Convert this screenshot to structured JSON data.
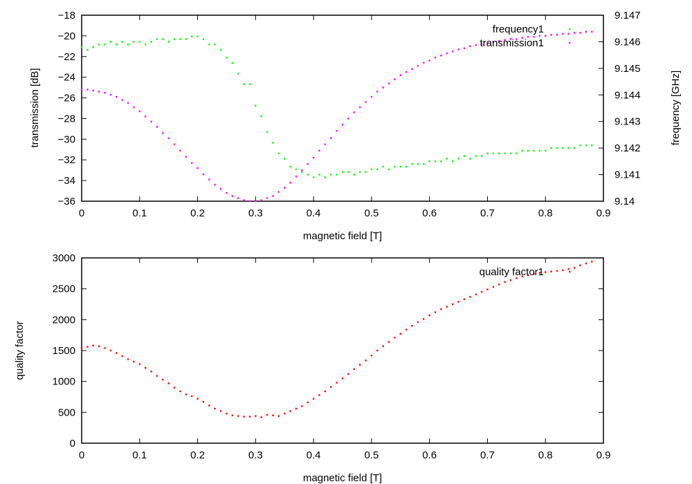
{
  "chart_data": [
    {
      "type": "scatter",
      "title": "",
      "xlabel": "magnetic field [T]",
      "ylabel": "transmission [dB]",
      "y2label": "frequency [GHz]",
      "xlim": [
        0,
        0.9
      ],
      "ylim": [
        -36,
        -18
      ],
      "y2lim": [
        9.14,
        9.147
      ],
      "xticks": [
        "0",
        "0.1",
        "0.2",
        "0.3",
        "0.4",
        "0.5",
        "0.6",
        "0.7",
        "0.8",
        "0.9"
      ],
      "yticks": [
        "-36",
        "-34",
        "-32",
        "-30",
        "-28",
        "-26",
        "-24",
        "-22",
        "-20",
        "-18"
      ],
      "y2ticks": [
        "9.14",
        "9.141",
        "9.142",
        "9.143",
        "9.144",
        "9.145",
        "9.146",
        "9.147"
      ],
      "grid": false,
      "legend": "top-right",
      "series": [
        {
          "name": "frequency1",
          "axis": "right",
          "color": "#00ff00",
          "x": [
            0,
            0.01,
            0.02,
            0.03,
            0.04,
            0.05,
            0.06,
            0.07,
            0.08,
            0.09,
            0.1,
            0.11,
            0.12,
            0.13,
            0.14,
            0.15,
            0.16,
            0.17,
            0.18,
            0.19,
            0.2,
            0.21,
            0.22,
            0.23,
            0.24,
            0.25,
            0.26,
            0.27,
            0.28,
            0.29,
            0.3,
            0.31,
            0.32,
            0.33,
            0.34,
            0.35,
            0.36,
            0.37,
            0.38,
            0.39,
            0.4,
            0.41,
            0.42,
            0.43,
            0.44,
            0.45,
            0.46,
            0.47,
            0.48,
            0.49,
            0.5,
            0.51,
            0.52,
            0.53,
            0.54,
            0.55,
            0.56,
            0.57,
            0.58,
            0.59,
            0.6,
            0.61,
            0.62,
            0.63,
            0.64,
            0.65,
            0.66,
            0.67,
            0.68,
            0.69,
            0.7,
            0.71,
            0.72,
            0.73,
            0.74,
            0.75,
            0.76,
            0.77,
            0.78,
            0.79,
            0.8,
            0.81,
            0.82,
            0.83,
            0.84,
            0.85,
            0.86,
            0.87,
            0.88
          ],
          "y": [
            9.1458,
            9.1457,
            9.1458,
            9.1459,
            9.1459,
            9.146,
            9.1459,
            9.146,
            9.1459,
            9.146,
            9.146,
            9.1459,
            9.146,
            9.1461,
            9.1461,
            9.146,
            9.1461,
            9.1461,
            9.1461,
            9.1462,
            9.1462,
            9.1461,
            9.1459,
            9.1459,
            9.1457,
            9.1454,
            9.1452,
            9.1448,
            9.1444,
            9.1444,
            9.1436,
            9.1432,
            9.1426,
            9.1422,
            9.1418,
            9.1416,
            9.1413,
            9.1412,
            9.1411,
            9.141,
            9.1409,
            9.141,
            9.1409,
            9.141,
            9.141,
            9.1411,
            9.1411,
            9.141,
            9.1411,
            9.1411,
            9.1412,
            9.1412,
            9.1413,
            9.1412,
            9.1413,
            9.1413,
            9.1413,
            9.1414,
            9.1414,
            9.1414,
            9.1415,
            9.1415,
            9.1415,
            9.1416,
            9.1415,
            9.1416,
            9.1417,
            9.1416,
            9.1417,
            9.1417,
            9.1418,
            9.1418,
            9.1418,
            9.1418,
            9.1418,
            9.1418,
            9.1419,
            9.1419,
            9.1419,
            9.1419,
            9.1419,
            9.142,
            9.142,
            9.142,
            9.142,
            9.142,
            9.1421,
            9.1421,
            9.1421
          ]
        },
        {
          "name": "transmission1",
          "axis": "left",
          "color": "#ff00ff",
          "x": [
            0,
            0.01,
            0.02,
            0.03,
            0.04,
            0.05,
            0.06,
            0.07,
            0.08,
            0.09,
            0.1,
            0.11,
            0.12,
            0.13,
            0.14,
            0.15,
            0.16,
            0.17,
            0.18,
            0.19,
            0.2,
            0.21,
            0.22,
            0.23,
            0.24,
            0.25,
            0.26,
            0.27,
            0.28,
            0.29,
            0.3,
            0.31,
            0.32,
            0.33,
            0.34,
            0.35,
            0.36,
            0.37,
            0.38,
            0.39,
            0.4,
            0.41,
            0.42,
            0.43,
            0.44,
            0.45,
            0.46,
            0.47,
            0.48,
            0.49,
            0.5,
            0.51,
            0.52,
            0.53,
            0.54,
            0.55,
            0.56,
            0.57,
            0.58,
            0.59,
            0.6,
            0.61,
            0.62,
            0.63,
            0.64,
            0.65,
            0.66,
            0.67,
            0.68,
            0.69,
            0.7,
            0.71,
            0.72,
            0.73,
            0.74,
            0.75,
            0.76,
            0.77,
            0.78,
            0.79,
            0.8,
            0.81,
            0.82,
            0.83,
            0.84,
            0.85,
            0.86,
            0.87,
            0.88
          ],
          "y": [
            -25.2,
            -25.2,
            -25.3,
            -25.4,
            -25.5,
            -25.7,
            -25.9,
            -26.2,
            -26.5,
            -26.9,
            -27.3,
            -27.8,
            -28.3,
            -28.8,
            -29.4,
            -29.9,
            -30.5,
            -31.1,
            -31.7,
            -32.3,
            -32.8,
            -33.4,
            -33.9,
            -34.4,
            -34.8,
            -35.2,
            -35.5,
            -35.7,
            -35.9,
            -36,
            -36,
            -35.9,
            -35.7,
            -35.5,
            -35.1,
            -34.7,
            -34.2,
            -33.6,
            -33,
            -32.4,
            -31.8,
            -31.1,
            -30.5,
            -29.9,
            -29.2,
            -28.6,
            -28,
            -27.4,
            -26.9,
            -26.4,
            -25.9,
            -25.4,
            -25,
            -24.6,
            -24.2,
            -23.8,
            -23.5,
            -23.2,
            -22.9,
            -22.6,
            -22.4,
            -22.1,
            -21.9,
            -21.7,
            -21.5,
            -21.3,
            -21.2,
            -21,
            -20.9,
            -20.8,
            -20.7,
            -20.6,
            -20.5,
            -20.4,
            -20.3,
            -20.3,
            -20.2,
            -20.1,
            -20.1,
            -20,
            -20,
            -19.9,
            -19.9,
            -19.8,
            -19.8,
            -19.7,
            -19.7,
            -19.6,
            -19.6
          ]
        }
      ]
    },
    {
      "type": "scatter",
      "title": "",
      "xlabel": "magnetic field [T]",
      "ylabel": "quality factor",
      "xlim": [
        0,
        0.9
      ],
      "ylim": [
        0,
        3000
      ],
      "xticks": [
        "0",
        "0.1",
        "0.2",
        "0.3",
        "0.4",
        "0.5",
        "0.6",
        "0.7",
        "0.8",
        "0.9"
      ],
      "yticks": [
        "0",
        "500",
        "1000",
        "1500",
        "2000",
        "2500",
        "3000"
      ],
      "grid": false,
      "legend": "top-right",
      "series": [
        {
          "name": "quality factor1",
          "color": "#ff0000",
          "x": [
            0,
            0.01,
            0.02,
            0.03,
            0.04,
            0.05,
            0.06,
            0.07,
            0.08,
            0.09,
            0.1,
            0.11,
            0.12,
            0.13,
            0.14,
            0.15,
            0.16,
            0.17,
            0.18,
            0.19,
            0.2,
            0.21,
            0.22,
            0.23,
            0.24,
            0.25,
            0.26,
            0.27,
            0.28,
            0.29,
            0.3,
            0.31,
            0.32,
            0.33,
            0.34,
            0.35,
            0.36,
            0.37,
            0.38,
            0.39,
            0.4,
            0.41,
            0.42,
            0.43,
            0.44,
            0.45,
            0.46,
            0.47,
            0.48,
            0.49,
            0.5,
            0.51,
            0.52,
            0.53,
            0.54,
            0.55,
            0.56,
            0.57,
            0.58,
            0.59,
            0.6,
            0.61,
            0.62,
            0.63,
            0.64,
            0.65,
            0.66,
            0.67,
            0.68,
            0.69,
            0.7,
            0.71,
            0.72,
            0.73,
            0.74,
            0.75,
            0.76,
            0.77,
            0.78,
            0.79,
            0.8,
            0.81,
            0.82,
            0.83,
            0.84,
            0.85,
            0.86,
            0.87,
            0.88
          ],
          "y": [
            1540,
            1560,
            1580,
            1570,
            1540,
            1500,
            1460,
            1410,
            1360,
            1320,
            1280,
            1220,
            1160,
            1090,
            1030,
            970,
            900,
            840,
            790,
            760,
            720,
            670,
            610,
            560,
            520,
            480,
            450,
            440,
            430,
            430,
            440,
            420,
            460,
            450,
            440,
            480,
            520,
            560,
            600,
            660,
            720,
            780,
            840,
            910,
            980,
            1050,
            1120,
            1200,
            1270,
            1340,
            1420,
            1500,
            1570,
            1640,
            1710,
            1770,
            1840,
            1900,
            1960,
            2010,
            2070,
            2120,
            2170,
            2210,
            2250,
            2290,
            2330,
            2370,
            2410,
            2450,
            2490,
            2530,
            2570,
            2610,
            2640,
            2670,
            2700,
            2720,
            2740,
            2760,
            2770,
            2780,
            2790,
            2800,
            2820,
            2840,
            2880,
            2910,
            2940
          ]
        }
      ]
    }
  ]
}
